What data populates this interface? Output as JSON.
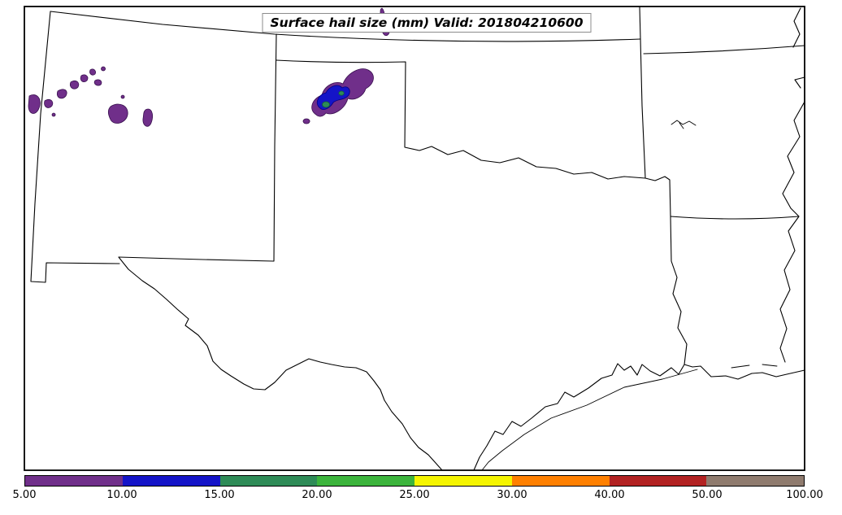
{
  "figure": {
    "title": "Surface hail size (mm) Valid: 201804210600",
    "background": "#ffffff",
    "frame_color": "#000000"
  },
  "colorbar": {
    "tick_labels": [
      "5.00",
      "10.00",
      "15.00",
      "20.00",
      "25.00",
      "30.00",
      "40.00",
      "50.00",
      "100.00"
    ],
    "levels": [
      5,
      10,
      15,
      20,
      25,
      30,
      40,
      50,
      100
    ],
    "colors": [
      "#702f8a",
      "#1414c8",
      "#2e8b57",
      "#3cb43c",
      "#f5f500",
      "#ff8000",
      "#b22222",
      "#8f7b6e"
    ]
  },
  "map": {
    "outline_color": "#000000",
    "regions": [
      "new-mexico",
      "texas",
      "oklahoma",
      "kansas-missouri-borders",
      "arkansas",
      "louisiana",
      "gulf-coast",
      "rio-grande",
      "red-river",
      "mississippi-river"
    ],
    "hail_areas": [
      {
        "name": "northeast-new-mexico-cluster",
        "level_mm": "5-10",
        "color": "#702f8a"
      },
      {
        "name": "texas-panhandle-storm-outer",
        "level_mm": "5-10",
        "color": "#702f8a"
      },
      {
        "name": "texas-panhandle-storm-mid",
        "level_mm": "10-15",
        "color": "#1414c8"
      },
      {
        "name": "texas-panhandle-storm-core",
        "level_mm": "15-20",
        "color": "#2e8b57"
      },
      {
        "name": "oklahoma-panhandle-streak",
        "level_mm": "5-10",
        "color": "#702f8a"
      }
    ]
  },
  "chart_data": {
    "type": "heatmap",
    "title": "Surface hail size (mm) Valid: 201804210600",
    "variable": "Surface hail size",
    "units": "mm",
    "valid_time": "201804210600",
    "contour_levels_mm": [
      5,
      10,
      15,
      20,
      25,
      30,
      40,
      50,
      100
    ],
    "level_colors": [
      "#702f8a",
      "#1414c8",
      "#2e8b57",
      "#3cb43c",
      "#f5f500",
      "#ff8000",
      "#b22222",
      "#8f7b6e"
    ],
    "legend_position": "bottom",
    "features": [
      {
        "region": "northeast New Mexico",
        "hail_size_mm": "5-10",
        "description": "scattered small patches"
      },
      {
        "region": "Texas panhandle",
        "hail_size_mm": "up to 15-20",
        "description": "elongated SW-NE storm area: 5-10 outer, 10-15 mid, 15-20 core"
      },
      {
        "region": "Oklahoma panhandle (top of map)",
        "hail_size_mm": "5-10",
        "description": "thin vertical streak"
      }
    ]
  }
}
